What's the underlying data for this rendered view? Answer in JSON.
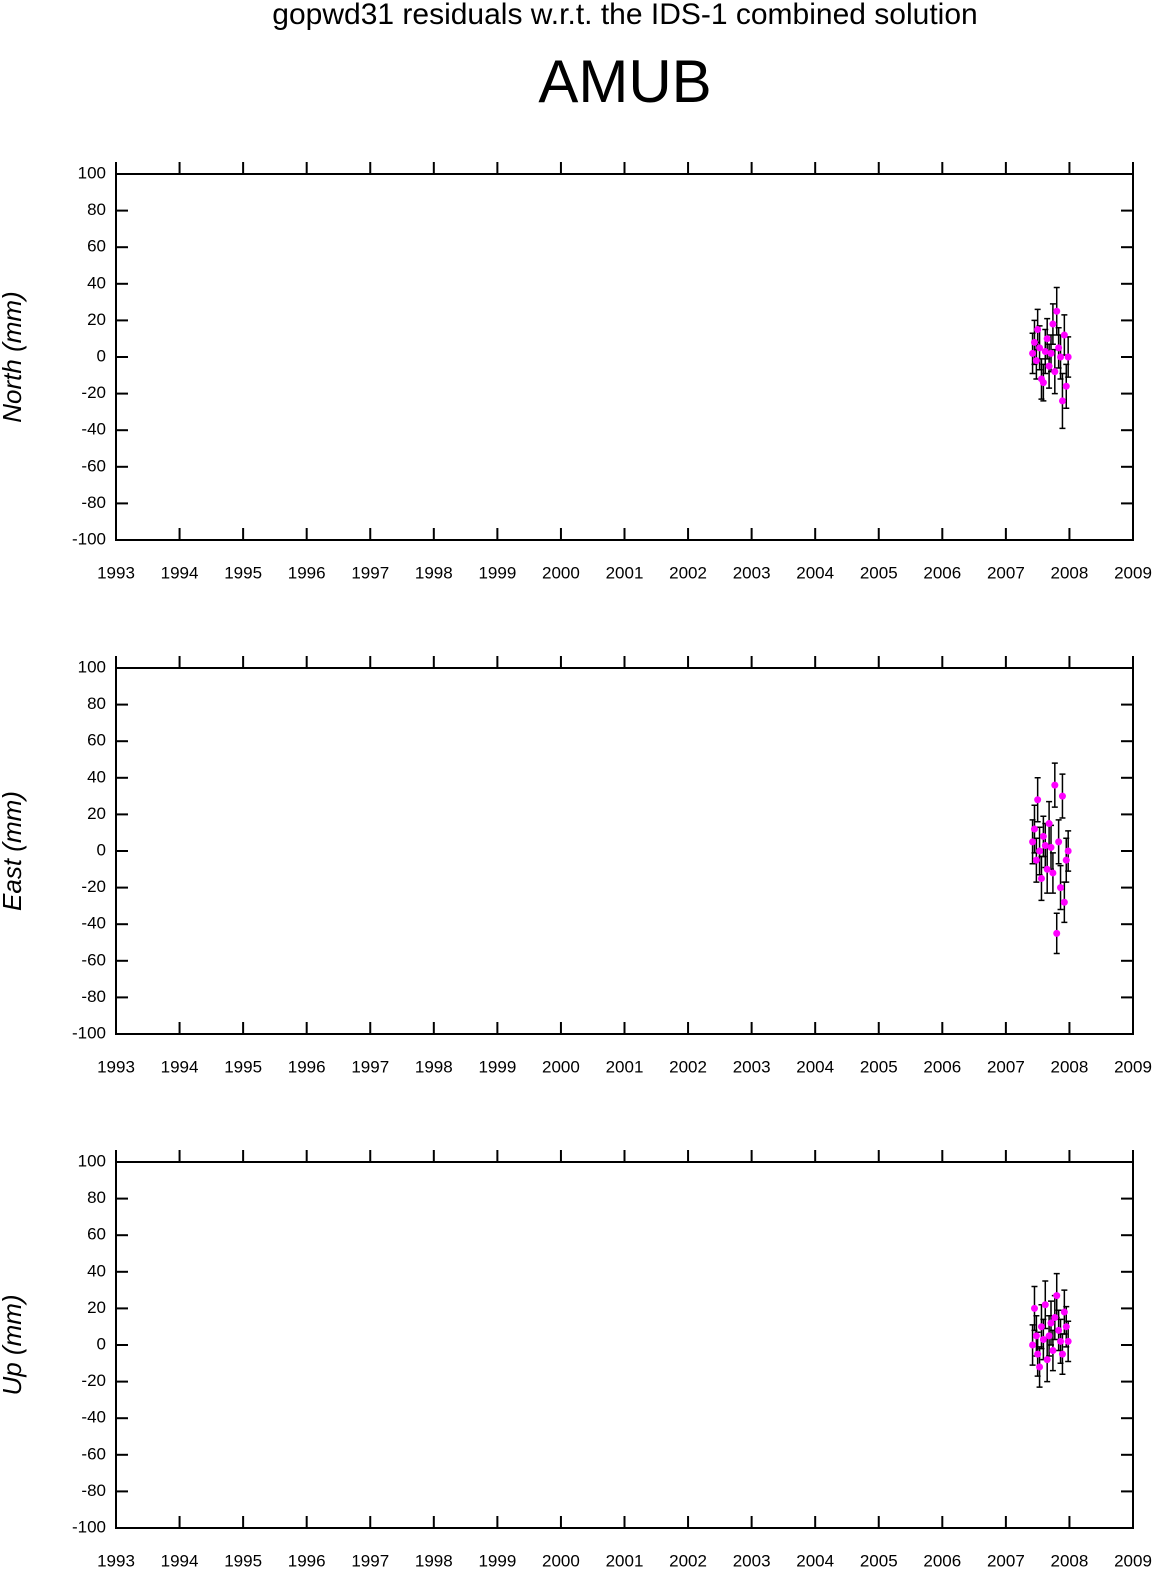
{
  "title": "gopwd31 residuals w.r.t. the IDS-1 combined solution",
  "subtitle": "AMUB",
  "chart_data": [
    {
      "type": "scatter",
      "ylabel": "North (mm)",
      "x": [
        2007.42,
        2007.45,
        2007.48,
        2007.5,
        2007.53,
        2007.56,
        2007.59,
        2007.62,
        2007.65,
        2007.68,
        2007.71,
        2007.74,
        2007.77,
        2007.8,
        2007.83,
        2007.86,
        2007.89,
        2007.92,
        2007.95,
        2007.98
      ],
      "values": [
        2,
        8,
        -2,
        15,
        5,
        -12,
        -14,
        3,
        10,
        -5,
        2,
        18,
        -8,
        25,
        5,
        0,
        -24,
        12,
        -16,
        0
      ],
      "errors": [
        11,
        12,
        10,
        11,
        12,
        11,
        10,
        12,
        11,
        12,
        10,
        11,
        12,
        13,
        11,
        12,
        15,
        11,
        12,
        11
      ],
      "color": "#ff00ff",
      "error_color": "#000000",
      "xlim": [
        1993,
        2009
      ],
      "xticks": [
        1993,
        1994,
        1995,
        1996,
        1997,
        1998,
        1999,
        2000,
        2001,
        2002,
        2003,
        2004,
        2005,
        2006,
        2007,
        2008,
        2009
      ],
      "ylim": [
        -100,
        100
      ],
      "yticks": [
        -100,
        -80,
        -60,
        -40,
        -20,
        0,
        20,
        40,
        60,
        80,
        100
      ]
    },
    {
      "type": "scatter",
      "ylabel": "East (mm)",
      "x": [
        2007.42,
        2007.45,
        2007.48,
        2007.5,
        2007.53,
        2007.56,
        2007.59,
        2007.62,
        2007.65,
        2007.68,
        2007.71,
        2007.74,
        2007.77,
        2007.8,
        2007.83,
        2007.86,
        2007.89,
        2007.92,
        2007.95,
        2007.98
      ],
      "values": [
        5,
        12,
        -5,
        28,
        0,
        -15,
        8,
        3,
        -10,
        15,
        2,
        -12,
        36,
        -45,
        5,
        -20,
        30,
        -28,
        -5,
        0
      ],
      "errors": [
        12,
        13,
        12,
        12,
        13,
        12,
        11,
        12,
        13,
        12,
        12,
        11,
        12,
        11,
        12,
        12,
        12,
        11,
        12,
        11
      ],
      "color": "#ff00ff",
      "error_color": "#000000",
      "xlim": [
        1993,
        2009
      ],
      "xticks": [
        1993,
        1994,
        1995,
        1996,
        1997,
        1998,
        1999,
        2000,
        2001,
        2002,
        2003,
        2004,
        2005,
        2006,
        2007,
        2008,
        2009
      ],
      "ylim": [
        -100,
        100
      ],
      "yticks": [
        -100,
        -80,
        -60,
        -40,
        -20,
        0,
        20,
        40,
        60,
        80,
        100
      ]
    },
    {
      "type": "scatter",
      "ylabel": "Up (mm)",
      "x": [
        2007.42,
        2007.45,
        2007.48,
        2007.5,
        2007.53,
        2007.56,
        2007.59,
        2007.62,
        2007.65,
        2007.68,
        2007.71,
        2007.74,
        2007.77,
        2007.8,
        2007.83,
        2007.86,
        2007.89,
        2007.92,
        2007.95,
        2007.98
      ],
      "values": [
        0,
        20,
        5,
        -5,
        -12,
        10,
        3,
        22,
        -8,
        5,
        12,
        -3,
        15,
        27,
        8,
        2,
        -5,
        18,
        10,
        2
      ],
      "errors": [
        11,
        12,
        11,
        12,
        11,
        12,
        11,
        13,
        12,
        11,
        12,
        11,
        12,
        12,
        11,
        12,
        11,
        12,
        11,
        11
      ],
      "color": "#ff00ff",
      "error_color": "#000000",
      "xlim": [
        1993,
        2009
      ],
      "xticks": [
        1993,
        1994,
        1995,
        1996,
        1997,
        1998,
        1999,
        2000,
        2001,
        2002,
        2003,
        2004,
        2005,
        2006,
        2007,
        2008,
        2009
      ],
      "ylim": [
        -100,
        100
      ],
      "yticks": [
        -100,
        -80,
        -60,
        -40,
        -20,
        0,
        20,
        40,
        60,
        80,
        100
      ]
    }
  ]
}
